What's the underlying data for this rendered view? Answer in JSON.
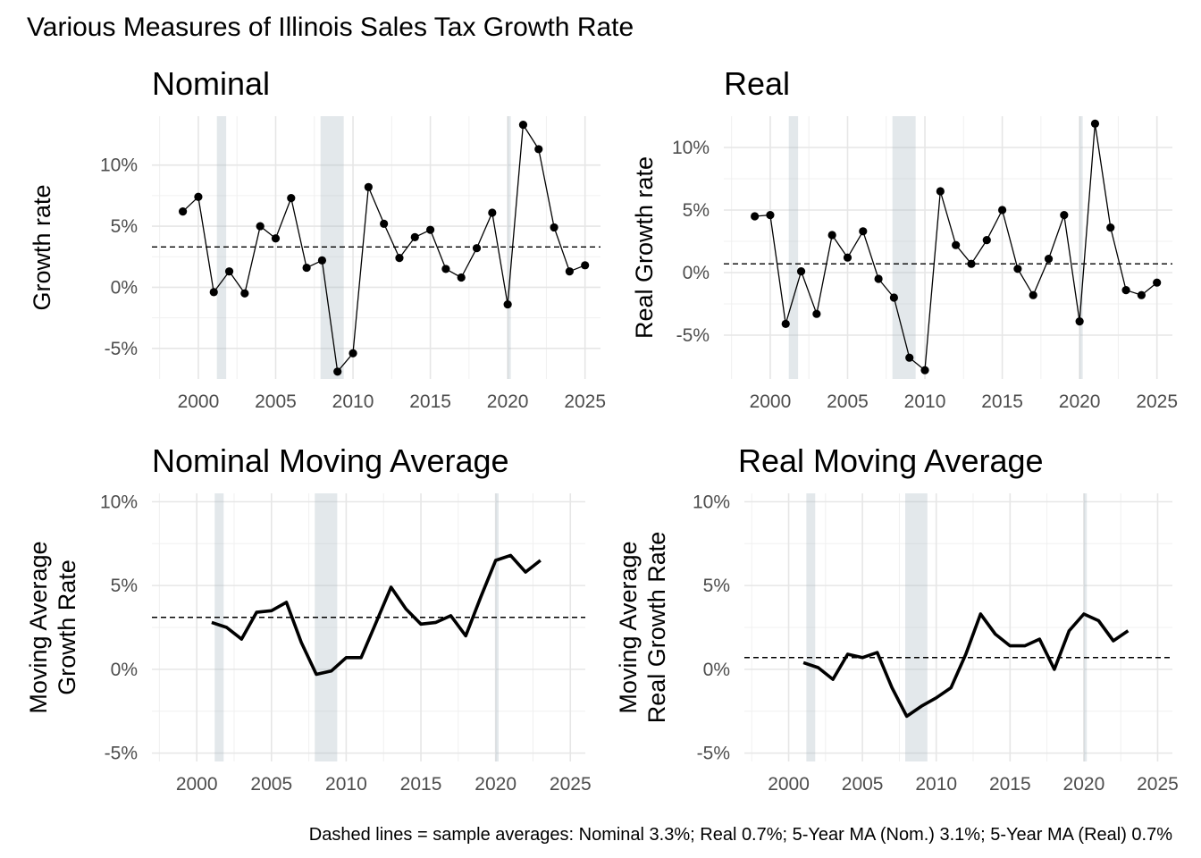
{
  "figure": {
    "title": "Various Measures of Illinois Sales Tax Growth Rate",
    "caption": "Dashed lines = sample averages: Nominal 3.3%; Real 0.7%; 5-Year MA (Nom.) 3.1%; 5-Year MA (Real) 0.7%"
  },
  "chart_data": [
    {
      "type": "line",
      "title": "Nominal",
      "xlabel": "",
      "ylabel": "Growth rate",
      "ylim": [
        -7.5,
        14
      ],
      "xlim": [
        1997,
        2026
      ],
      "xticks": [
        2000,
        2005,
        2010,
        2015,
        2020,
        2025
      ],
      "yticks": [
        -5,
        0,
        5,
        10
      ],
      "yticklabels": [
        "-5%",
        "0%",
        "5%",
        "10%"
      ],
      "grid": true,
      "markers": true,
      "line_style": "thin",
      "recession_bands": [
        [
          2001.2,
          2001.8
        ],
        [
          2007.9,
          2009.4
        ],
        [
          2020.0,
          2020.2
        ]
      ],
      "average_line": 3.3,
      "x": [
        1999,
        2000,
        2001,
        2002,
        2003,
        2004,
        2005,
        2006,
        2007,
        2008,
        2009,
        2010,
        2011,
        2012,
        2013,
        2014,
        2015,
        2016,
        2017,
        2018,
        2019,
        2020,
        2021,
        2022,
        2023,
        2024,
        2025
      ],
      "values": [
        6.2,
        7.4,
        -0.4,
        1.3,
        -0.5,
        5.0,
        4.0,
        7.3,
        1.6,
        2.2,
        -6.9,
        -5.4,
        8.2,
        5.2,
        2.4,
        4.1,
        4.7,
        1.5,
        0.8,
        3.2,
        6.1,
        -1.4,
        13.3,
        11.3,
        4.9,
        1.3,
        1.8
      ],
      "plot_box": [
        170,
        130,
        672,
        424
      ]
    },
    {
      "type": "line",
      "title": "Real",
      "xlabel": "",
      "ylabel": "Real Growth rate",
      "ylim": [
        -8.5,
        12.5
      ],
      "xlim": [
        1997,
        2026
      ],
      "xticks": [
        2000,
        2005,
        2010,
        2015,
        2020,
        2025
      ],
      "yticks": [
        -5,
        0,
        5,
        10
      ],
      "yticklabels": [
        "-5%",
        "0%",
        "5%",
        "10%"
      ],
      "grid": true,
      "markers": true,
      "line_style": "thin",
      "recession_bands": [
        [
          2001.2,
          2001.8
        ],
        [
          2007.9,
          2009.4
        ],
        [
          2020.0,
          2020.2
        ]
      ],
      "average_line": 0.7,
      "x": [
        1999,
        2000,
        2001,
        2002,
        2003,
        2004,
        2005,
        2006,
        2007,
        2008,
        2009,
        2010,
        2011,
        2012,
        2013,
        2014,
        2015,
        2016,
        2017,
        2018,
        2019,
        2020,
        2021,
        2022,
        2023,
        2024,
        2025
      ],
      "values": [
        4.5,
        4.6,
        -4.1,
        0.1,
        -3.3,
        3.0,
        1.2,
        3.3,
        -0.5,
        -2.0,
        -6.8,
        -7.8,
        6.5,
        2.2,
        0.7,
        2.6,
        5.0,
        0.3,
        -1.8,
        1.1,
        4.6,
        -3.9,
        11.9,
        3.6,
        -1.4,
        -1.8,
        -0.8
      ],
      "plot_box": [
        810,
        130,
        1312,
        424
      ]
    },
    {
      "type": "line",
      "title": "Nominal Moving Average",
      "xlabel": "",
      "ylabel": "Moving Average\nGrowth Rate",
      "ylim": [
        -5.5,
        10.5
      ],
      "xlim": [
        1997,
        2026
      ],
      "xticks": [
        2000,
        2005,
        2010,
        2015,
        2020,
        2025
      ],
      "yticks": [
        -5,
        0,
        5,
        10
      ],
      "yticklabels": [
        "-5%",
        "0%",
        "5%",
        "10%"
      ],
      "grid": true,
      "markers": false,
      "line_style": "thick",
      "recession_bands": [
        [
          2001.2,
          2001.8
        ],
        [
          2007.9,
          2009.4
        ],
        [
          2020.0,
          2020.2
        ]
      ],
      "average_line": 3.1,
      "x": [
        2001,
        2002,
        2003,
        2004,
        2005,
        2006,
        2007,
        2008,
        2009,
        2010,
        2011,
        2012,
        2013,
        2014,
        2015,
        2016,
        2017,
        2018,
        2019,
        2020,
        2021,
        2022,
        2023
      ],
      "values": [
        2.8,
        2.5,
        1.8,
        3.4,
        3.5,
        4.0,
        1.6,
        -0.3,
        -0.1,
        0.7,
        0.7,
        2.8,
        4.9,
        3.6,
        2.7,
        2.8,
        3.2,
        2.0,
        4.3,
        6.5,
        6.8,
        5.8,
        6.5
      ],
      "plot_box": [
        170,
        552,
        655,
        852
      ]
    },
    {
      "type": "line",
      "title": "Real Moving Average",
      "xlabel": "",
      "ylabel": "Moving Average\nReal Growth Rate",
      "ylim": [
        -5.5,
        10.5
      ],
      "xlim": [
        1997,
        2026
      ],
      "xticks": [
        2000,
        2005,
        2010,
        2015,
        2020,
        2025
      ],
      "yticks": [
        -5,
        0,
        5,
        10
      ],
      "yticklabels": [
        "-5%",
        "0%",
        "5%",
        "10%"
      ],
      "grid": true,
      "markers": false,
      "line_style": "thick",
      "recession_bands": [
        [
          2001.2,
          2001.8
        ],
        [
          2007.9,
          2009.4
        ],
        [
          2020.0,
          2020.2
        ]
      ],
      "average_line": 0.7,
      "x": [
        2001,
        2002,
        2003,
        2004,
        2005,
        2006,
        2007,
        2008,
        2009,
        2010,
        2011,
        2012,
        2013,
        2014,
        2015,
        2016,
        2017,
        2018,
        2019,
        2020,
        2021,
        2022,
        2023
      ],
      "values": [
        0.4,
        0.1,
        -0.6,
        0.9,
        0.7,
        1.0,
        -1.1,
        -2.8,
        -2.2,
        -1.7,
        -1.1,
        0.9,
        3.3,
        2.1,
        1.4,
        1.4,
        1.8,
        0.0,
        2.3,
        3.3,
        2.9,
        1.7,
        2.3
      ],
      "plot_box": [
        833,
        552,
        1312,
        852
      ]
    }
  ]
}
